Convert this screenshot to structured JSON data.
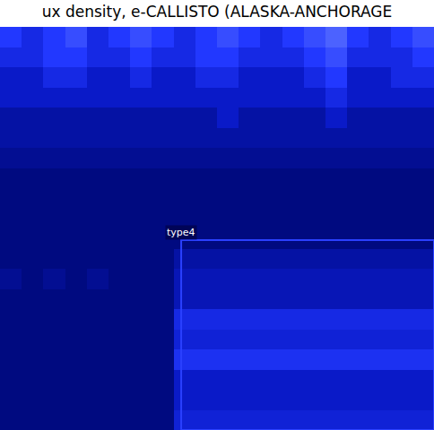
{
  "chart_data": {
    "type": "heatmap",
    "title": "ux density, e-CALLISTO (ALASKA-ANCHORAGE",
    "xlim": [
      -0.5,
      19.5
    ],
    "ylim": [
      19.5,
      -0.5
    ],
    "zlim": [
      0,
      10
    ],
    "tick_labels": false,
    "grid": false,
    "box": {
      "label": "type4",
      "x0": 7.85,
      "x1": 19.5,
      "y0": 10.08,
      "y1": 19.5,
      "color": "#2a40ff"
    },
    "cells": [
      [
        5,
        4,
        5,
        6,
        4,
        5,
        6,
        5,
        4,
        5,
        6,
        5,
        4,
        5,
        6,
        7,
        5,
        4,
        5,
        6
      ],
      [
        4,
        4,
        5,
        5,
        4,
        4,
        5,
        4,
        4,
        5,
        5,
        4,
        4,
        4,
        5,
        6,
        4,
        4,
        4,
        5
      ],
      [
        3,
        3,
        4,
        4,
        3,
        3,
        4,
        3,
        3,
        4,
        4,
        3,
        3,
        3,
        4,
        5,
        3,
        3,
        4,
        4
      ],
      [
        3,
        3,
        3,
        3,
        3,
        3,
        3,
        3,
        3,
        3,
        3,
        3,
        3,
        3,
        3,
        4,
        3,
        3,
        3,
        3
      ],
      [
        2,
        2,
        2,
        2,
        2,
        2,
        2,
        2,
        2,
        2,
        3,
        2,
        2,
        2,
        2,
        3,
        2,
        2,
        2,
        2
      ],
      [
        2,
        2,
        2,
        2,
        2,
        2,
        2,
        2,
        2,
        2,
        2,
        2,
        2,
        2,
        2,
        2,
        2,
        2,
        2,
        2
      ],
      [
        1.5,
        1.5,
        1.5,
        1.5,
        1.5,
        1.5,
        1.5,
        1.5,
        1.5,
        1.5,
        1.5,
        1.5,
        1.5,
        1.5,
        1.5,
        1.5,
        1.5,
        1.5,
        1.5,
        1.5
      ],
      [
        1,
        1,
        1,
        1,
        1,
        1,
        1,
        1,
        1,
        1,
        1,
        1,
        1,
        1,
        1,
        1,
        1,
        1,
        1,
        1
      ],
      [
        1,
        1,
        1,
        1,
        1,
        1,
        1,
        1,
        1,
        1,
        1,
        1,
        1,
        1,
        1,
        1,
        1,
        1,
        1,
        1
      ],
      [
        1,
        1,
        1,
        1,
        1,
        1,
        1,
        1,
        1,
        1,
        1,
        1,
        1,
        1,
        1,
        1,
        1,
        1,
        1,
        1
      ],
      [
        1,
        1,
        1,
        1,
        1,
        1,
        1,
        1,
        1,
        1,
        1,
        1,
        1,
        1,
        1,
        1,
        1,
        1,
        1,
        1
      ],
      [
        1,
        1,
        1,
        1,
        1,
        1,
        1,
        1,
        2,
        2,
        2,
        2,
        2,
        2,
        2,
        2,
        2,
        2,
        2,
        2
      ],
      [
        1.5,
        1,
        1.5,
        1,
        1.5,
        1,
        1,
        1,
        2.5,
        2.5,
        2.5,
        2.5,
        2.5,
        2.5,
        2.5,
        2.5,
        2.5,
        2.5,
        2.5,
        2.5
      ],
      [
        1,
        1,
        1,
        1,
        1,
        1,
        1,
        1,
        2.5,
        2.5,
        2.5,
        2.5,
        2.5,
        2.5,
        2.5,
        2.5,
        2.5,
        2.5,
        2.5,
        2.5
      ],
      [
        1,
        1,
        1,
        1,
        1,
        1,
        1,
        1,
        4,
        4,
        4,
        4,
        4,
        4,
        4,
        4,
        4,
        4,
        4,
        4
      ],
      [
        1,
        1,
        1,
        1,
        1,
        1,
        1,
        1,
        3.5,
        3.5,
        3.5,
        3.5,
        3.5,
        3.5,
        3.5,
        3.5,
        3.5,
        3.5,
        3.5,
        3.5
      ],
      [
        1,
        1,
        1,
        1,
        1,
        1,
        1,
        1,
        4.5,
        4.5,
        4.5,
        4.5,
        4.5,
        4.5,
        4.5,
        4.5,
        4.5,
        4.5,
        4.5,
        4.5
      ],
      [
        1,
        1,
        1,
        1,
        1,
        1,
        1,
        1,
        3,
        3,
        3,
        3,
        3,
        3,
        3,
        3,
        3,
        3,
        3,
        3
      ],
      [
        1,
        1,
        1,
        1,
        1,
        1,
        1,
        1,
        3,
        3,
        3,
        3,
        3,
        3,
        3,
        3,
        3,
        3,
        3,
        3
      ],
      [
        1,
        1,
        1,
        1,
        1,
        1,
        1,
        1,
        3.5,
        3.5,
        3.5,
        3.5,
        3.5,
        3.5,
        3.5,
        3.5,
        3.5,
        3.5,
        3.5,
        3.5
      ]
    ]
  }
}
